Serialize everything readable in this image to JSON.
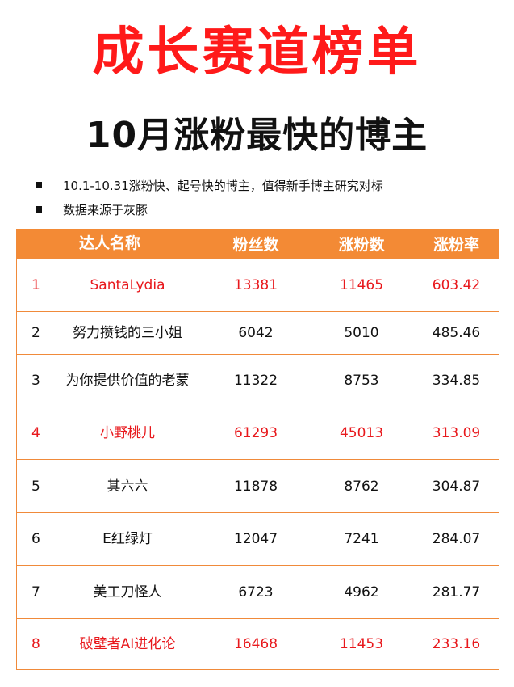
{
  "title": "成长赛道榜单",
  "subtitle": "10月涨粉最快的博主",
  "notes": [
    "10.1-10.31涨粉快、起号快的博主，值得新手博主研究对标",
    "数据来源于灰豚"
  ],
  "table": {
    "headers": {
      "name": "达人名称",
      "fans": "粉丝数",
      "gain": "涨粉数",
      "rate": "涨粉率"
    },
    "rows": [
      {
        "rank": "1",
        "name": "SantaLydia",
        "fans": "13381",
        "gain": "11465",
        "rate": "603.42",
        "highlight": true
      },
      {
        "rank": "2",
        "name": "努力攒钱的三小姐",
        "fans": "6042",
        "gain": "5010",
        "rate": "485.46",
        "highlight": false
      },
      {
        "rank": "3",
        "name": "为你提供价值的老蒙",
        "fans": "11322",
        "gain": "8753",
        "rate": "334.85",
        "highlight": false
      },
      {
        "rank": "4",
        "name": "小野桃儿",
        "fans": "61293",
        "gain": "45013",
        "rate": "313.09",
        "highlight": true
      },
      {
        "rank": "5",
        "name": "其六六",
        "fans": "11878",
        "gain": "8762",
        "rate": "304.87",
        "highlight": false
      },
      {
        "rank": "6",
        "name": "E红绿灯",
        "fans": "12047",
        "gain": "7241",
        "rate": "284.07",
        "highlight": false
      },
      {
        "rank": "7",
        "name": "美工刀怪人",
        "fans": "6723",
        "gain": "4962",
        "rate": "281.77",
        "highlight": false
      },
      {
        "rank": "8",
        "name": "破壁者AI进化论",
        "fans": "16468",
        "gain": "11453",
        "rate": "233.16",
        "highlight": true
      }
    ]
  },
  "colors": {
    "title": "#ff1a1a",
    "header_bg": "#f38a35",
    "highlight_text": "#e8181c",
    "border": "#f08a3a"
  }
}
